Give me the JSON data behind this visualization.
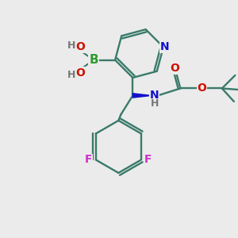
{
  "background_color": "#ebebeb",
  "bond_color": "#3a7a6a",
  "atom_colors": {
    "B": "#2d9c2d",
    "O": "#cc1100",
    "N": "#1111cc",
    "F": "#cc33cc",
    "H": "#777777",
    "C": "#3a7a6a"
  },
  "figsize": [
    3.0,
    3.0
  ],
  "dpi": 100
}
